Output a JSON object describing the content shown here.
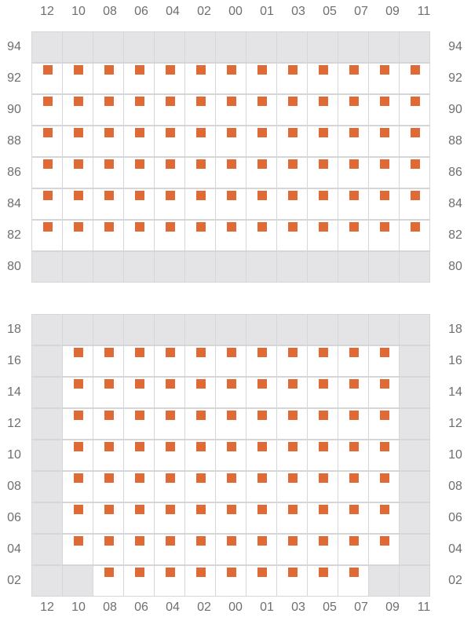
{
  "columns": [
    "12",
    "10",
    "08",
    "06",
    "04",
    "02",
    "00",
    "01",
    "03",
    "05",
    "07",
    "09",
    "11"
  ],
  "colors": {
    "seat": "#e06a35",
    "unavailable": "#e4e4e6",
    "grid": "#d6d6d9"
  },
  "sections": [
    {
      "rows": [
        {
          "label": "94",
          "cells": "GGGGGGGGGGGGG"
        },
        {
          "label": "92",
          "cells": "SSSSSSSSSSSSS"
        },
        {
          "label": "90",
          "cells": "SSSSSSSSSSSSS"
        },
        {
          "label": "88",
          "cells": "SSSSSSSSSSSSS"
        },
        {
          "label": "86",
          "cells": "SSSSSSSSSSSSS"
        },
        {
          "label": "84",
          "cells": "SSSSSSSSSSSSS"
        },
        {
          "label": "82",
          "cells": "SSSSSSSSSSSSS"
        },
        {
          "label": "80",
          "cells": "GGGGGGGGGGGGG"
        }
      ]
    },
    {
      "rows": [
        {
          "label": "18",
          "cells": "GGGGGGGGGGGGG"
        },
        {
          "label": "16",
          "cells": "GSSSSSSSSSSSG"
        },
        {
          "label": "14",
          "cells": "GSSSSSSSSSSSG"
        },
        {
          "label": "12",
          "cells": "GSSSSSSSSSSSG"
        },
        {
          "label": "10",
          "cells": "GSSSSSSSSSSSG"
        },
        {
          "label": "08",
          "cells": "GSSSSSSSSSSSG"
        },
        {
          "label": "06",
          "cells": "GSSSSSSSSSSSG"
        },
        {
          "label": "04",
          "cells": "GSSSSSSSSSSSG"
        },
        {
          "label": "02",
          "cells": "GGSSSSSSSSSGG"
        }
      ]
    }
  ]
}
